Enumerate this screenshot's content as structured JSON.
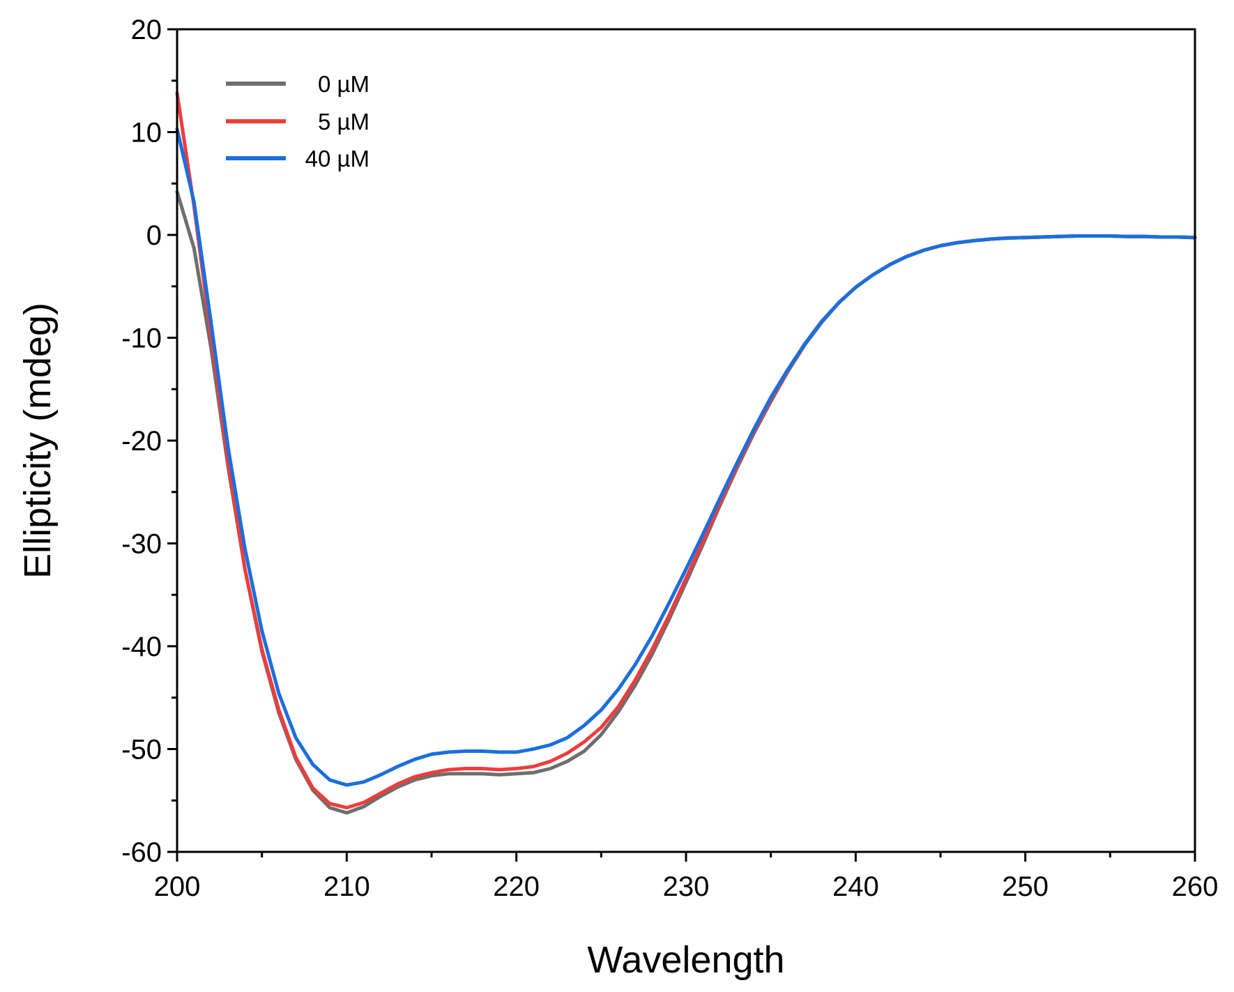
{
  "chart_data": {
    "type": "line",
    "title": "",
    "xlabel": "Wavelength",
    "ylabel": "Ellipticity (mdeg)",
    "xlim": [
      200,
      260
    ],
    "ylim": [
      -60,
      20
    ],
    "xticks": [
      200,
      210,
      220,
      230,
      240,
      250,
      260
    ],
    "xticks_minor": [
      205,
      215,
      225,
      235,
      245,
      255
    ],
    "yticks": [
      -60,
      -50,
      -40,
      -30,
      -20,
      -10,
      0,
      10,
      20
    ],
    "yticks_minor": [
      -55,
      -45,
      -35,
      -25,
      -15,
      -5,
      5,
      15
    ],
    "grid": false,
    "legend_position": "top-left",
    "x": [
      200,
      201,
      202,
      203,
      204,
      205,
      206,
      207,
      208,
      209,
      210,
      211,
      212,
      213,
      214,
      215,
      216,
      217,
      218,
      219,
      220,
      221,
      222,
      223,
      224,
      225,
      226,
      227,
      228,
      229,
      230,
      231,
      232,
      233,
      234,
      235,
      236,
      237,
      238,
      239,
      240,
      241,
      242,
      243,
      244,
      245,
      246,
      247,
      248,
      249,
      250,
      251,
      252,
      253,
      254,
      255,
      256,
      257,
      258,
      259,
      260
    ],
    "series": [
      {
        "name": "0 µM",
        "color": "#6e6e6e",
        "values": [
          4.2,
          -1.3,
          -11.0,
          -22.5,
          -32.5,
          -40.5,
          -46.5,
          -51.0,
          -54.0,
          -55.7,
          -56.2,
          -55.6,
          -54.6,
          -53.7,
          -53.0,
          -52.6,
          -52.4,
          -52.4,
          -52.4,
          -52.5,
          -52.4,
          -52.3,
          -51.9,
          -51.2,
          -50.2,
          -48.6,
          -46.4,
          -43.8,
          -40.8,
          -37.4,
          -33.8,
          -30.1,
          -26.3,
          -22.7,
          -19.3,
          -16.2,
          -13.3,
          -10.7,
          -8.5,
          -6.6,
          -5.1,
          -3.9,
          -2.9,
          -2.1,
          -1.5,
          -1.05,
          -0.75,
          -0.55,
          -0.4,
          -0.3,
          -0.25,
          -0.2,
          -0.15,
          -0.1,
          -0.1,
          -0.1,
          -0.15,
          -0.15,
          -0.2,
          -0.2,
          -0.25
        ]
      },
      {
        "name": "5 µM",
        "color": "#f03c3c",
        "values": [
          13.8,
          2.8,
          -9.8,
          -22.0,
          -32.5,
          -40.3,
          -46.2,
          -50.8,
          -53.8,
          -55.3,
          -55.7,
          -55.2,
          -54.3,
          -53.4,
          -52.7,
          -52.3,
          -52.0,
          -51.9,
          -51.9,
          -52.0,
          -51.9,
          -51.7,
          -51.2,
          -50.4,
          -49.3,
          -47.9,
          -45.9,
          -43.3,
          -40.3,
          -37.0,
          -33.4,
          -29.8,
          -26.1,
          -22.5,
          -19.1,
          -16.0,
          -13.2,
          -10.6,
          -8.4,
          -6.6,
          -5.1,
          -3.9,
          -2.9,
          -2.1,
          -1.5,
          -1.05,
          -0.75,
          -0.55,
          -0.4,
          -0.3,
          -0.25,
          -0.2,
          -0.15,
          -0.1,
          -0.1,
          -0.1,
          -0.15,
          -0.15,
          -0.2,
          -0.2,
          -0.25
        ]
      },
      {
        "name": "40 µM",
        "color": "#1a6fdd",
        "values": [
          10.3,
          3.2,
          -8.5,
          -20.6,
          -30.5,
          -38.5,
          -44.6,
          -48.9,
          -51.5,
          -53.0,
          -53.5,
          -53.2,
          -52.5,
          -51.7,
          -51.0,
          -50.5,
          -50.3,
          -50.2,
          -50.2,
          -50.3,
          -50.3,
          -50.0,
          -49.6,
          -48.9,
          -47.7,
          -46.2,
          -44.2,
          -41.8,
          -39.0,
          -35.8,
          -32.5,
          -29.1,
          -25.6,
          -22.2,
          -18.9,
          -15.8,
          -13.1,
          -10.6,
          -8.4,
          -6.6,
          -5.1,
          -3.9,
          -2.9,
          -2.1,
          -1.5,
          -1.05,
          -0.75,
          -0.55,
          -0.4,
          -0.3,
          -0.25,
          -0.2,
          -0.15,
          -0.1,
          -0.1,
          -0.1,
          -0.15,
          -0.15,
          -0.2,
          -0.2,
          -0.25
        ]
      }
    ]
  }
}
